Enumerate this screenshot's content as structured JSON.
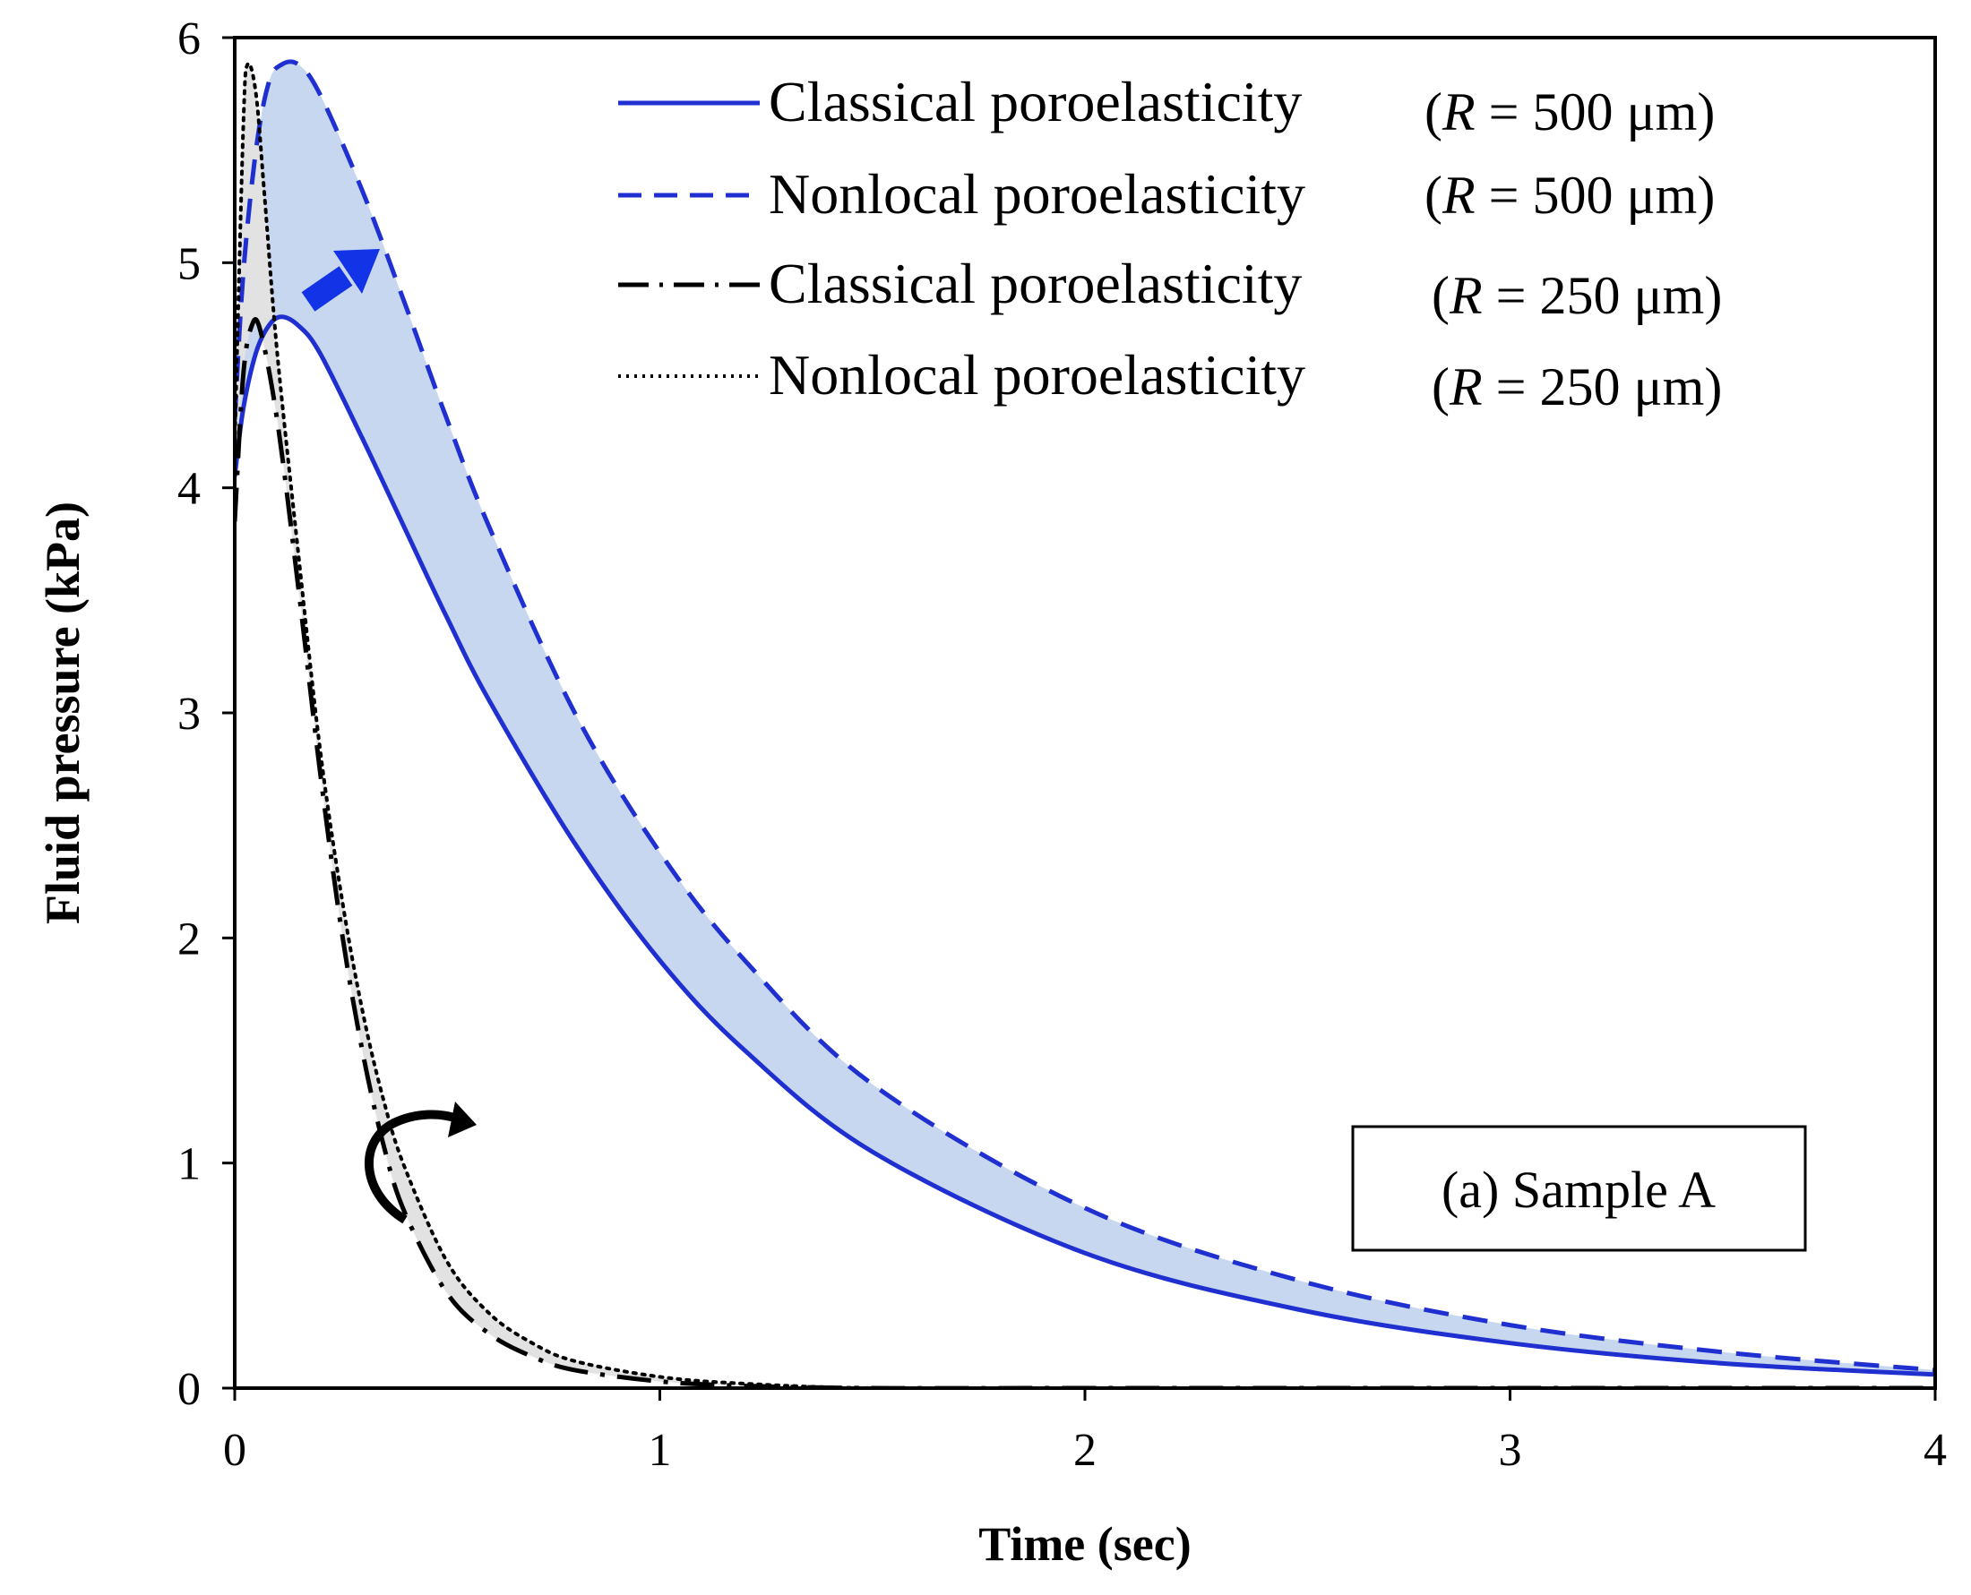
{
  "chart_data": {
    "type": "line",
    "title": "",
    "xlabel": "Time (sec)",
    "ylabel": "Fluid pressure (kPa)",
    "xlim": [
      0,
      4
    ],
    "ylim": [
      0,
      6
    ],
    "xticks": [
      "0",
      "1",
      "2",
      "3",
      "4"
    ],
    "yticks": [
      "0",
      "1",
      "2",
      "3",
      "4",
      "5",
      "6"
    ],
    "grid": false,
    "legend_position": "top-right",
    "annotation": "(a) Sample A",
    "colors": {
      "blue": "#1f2fd0",
      "black": "#000000",
      "blue_fill": "#c7d7ef",
      "gray_fill": "#e2e2e2"
    },
    "series": [
      {
        "name": "Classical poroelasticity",
        "param_label": "(R = 500 μm)",
        "param_symbol": "R",
        "param_value": "= 500 μm",
        "style": "solid",
        "color": "#1f2fd0",
        "x": [
          0.0,
          0.02,
          0.05,
          0.08,
          0.11,
          0.15,
          0.2,
          0.3,
          0.4,
          0.5,
          0.6,
          0.8,
          1.0,
          1.2,
          1.5,
          2.0,
          2.5,
          3.0,
          3.5,
          4.0
        ],
        "y": [
          4.05,
          4.35,
          4.6,
          4.72,
          4.76,
          4.72,
          4.6,
          4.22,
          3.82,
          3.42,
          3.05,
          2.42,
          1.9,
          1.5,
          1.05,
          0.6,
          0.35,
          0.2,
          0.11,
          0.06
        ]
      },
      {
        "name": "Nonlocal poroelasticity",
        "param_label": "(R = 500 μm)",
        "param_symbol": "R",
        "param_value": "= 500 μm",
        "style": "dashed",
        "color": "#1f2fd0",
        "x": [
          0.0,
          0.02,
          0.05,
          0.08,
          0.11,
          0.15,
          0.2,
          0.3,
          0.4,
          0.5,
          0.6,
          0.8,
          1.0,
          1.2,
          1.5,
          2.0,
          2.5,
          3.0,
          3.5,
          4.0
        ],
        "y": [
          4.3,
          4.95,
          5.5,
          5.8,
          5.88,
          5.88,
          5.75,
          5.32,
          4.82,
          4.3,
          3.82,
          3.0,
          2.38,
          1.9,
          1.35,
          0.8,
          0.48,
          0.28,
          0.16,
          0.08
        ]
      },
      {
        "name": "Classical poroelasticity",
        "param_label": "(R = 250 μm)",
        "param_symbol": "R",
        "param_value": "= 250 μm",
        "style": "dashdot",
        "color": "#000000",
        "x": [
          0.0,
          0.02,
          0.04,
          0.06,
          0.1,
          0.15,
          0.2,
          0.25,
          0.3,
          0.35,
          0.4,
          0.5,
          0.6,
          0.7,
          0.8,
          1.0,
          1.2,
          1.5,
          2.0,
          3.0,
          4.0
        ],
        "y": [
          3.85,
          4.5,
          4.72,
          4.7,
          4.3,
          3.55,
          2.75,
          2.05,
          1.5,
          1.08,
          0.78,
          0.42,
          0.24,
          0.14,
          0.08,
          0.03,
          0.01,
          0.0,
          0.0,
          0.0,
          0.0
        ]
      },
      {
        "name": "Nonlocal poroelasticity",
        "param_label": "(R = 250 μm)",
        "param_symbol": "R",
        "param_value": "= 250 μm",
        "style": "dotted",
        "color": "#000000",
        "x": [
          0.0,
          0.02,
          0.03,
          0.05,
          0.07,
          0.1,
          0.15,
          0.2,
          0.25,
          0.3,
          0.35,
          0.4,
          0.5,
          0.6,
          0.7,
          0.8,
          1.0,
          1.2,
          1.5,
          2.0,
          3.0,
          4.0
        ],
        "y": [
          4.2,
          5.6,
          5.88,
          5.75,
          5.3,
          4.6,
          3.7,
          2.85,
          2.2,
          1.68,
          1.28,
          0.98,
          0.56,
          0.33,
          0.2,
          0.12,
          0.05,
          0.02,
          0.0,
          0.0,
          0.0,
          0.0
        ]
      }
    ]
  }
}
